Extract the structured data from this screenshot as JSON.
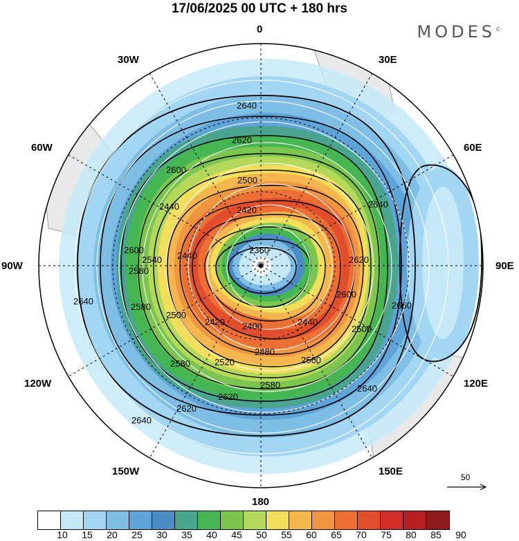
{
  "title": "17/06/2025  00 UTC  + 180 hrs",
  "brand": "MODES",
  "brand_mark": "©",
  "lon_labels": {
    "lon_0": "0",
    "lon_30e": "30E",
    "lon_60e": "60E",
    "lon_90e": "90E",
    "lon_120e": "120E",
    "lon_150e": "150E",
    "lon_180": "180",
    "lon_150w": "150W",
    "lon_120w": "120W",
    "lon_90w": "90W",
    "lon_60w": "60W",
    "lon_30w": "30W"
  },
  "contour_labels": [
    "2360",
    "2400",
    "2420",
    "2420",
    "2440",
    "2440",
    "2440",
    "2480",
    "2500",
    "2500",
    "2500",
    "2520",
    "2540",
    "2560",
    "2580",
    "2580",
    "2580",
    "2580",
    "2600",
    "2600",
    "2600",
    "2620",
    "2620",
    "2620",
    "2620",
    "2640",
    "2640",
    "2640",
    "2640",
    "2640",
    "2660"
  ],
  "reference_vector": {
    "label": "50"
  },
  "colorbar": {
    "colors": [
      "#ffffff",
      "#c6e9f9",
      "#a3d6f3",
      "#7fbfe6",
      "#5ea4d8",
      "#4b8cc7",
      "#4aa58f",
      "#46b653",
      "#7cc650",
      "#b4d95a",
      "#f3de5c",
      "#f5b64d",
      "#f09640",
      "#ec7033",
      "#e24d2c",
      "#d22f28",
      "#b81f23",
      "#8f1a1c"
    ],
    "tick_labels": [
      "10",
      "15",
      "20",
      "25",
      "30",
      "35",
      "40",
      "45",
      "50",
      "55",
      "60",
      "65",
      "70",
      "75",
      "80",
      "85",
      "90"
    ]
  }
}
